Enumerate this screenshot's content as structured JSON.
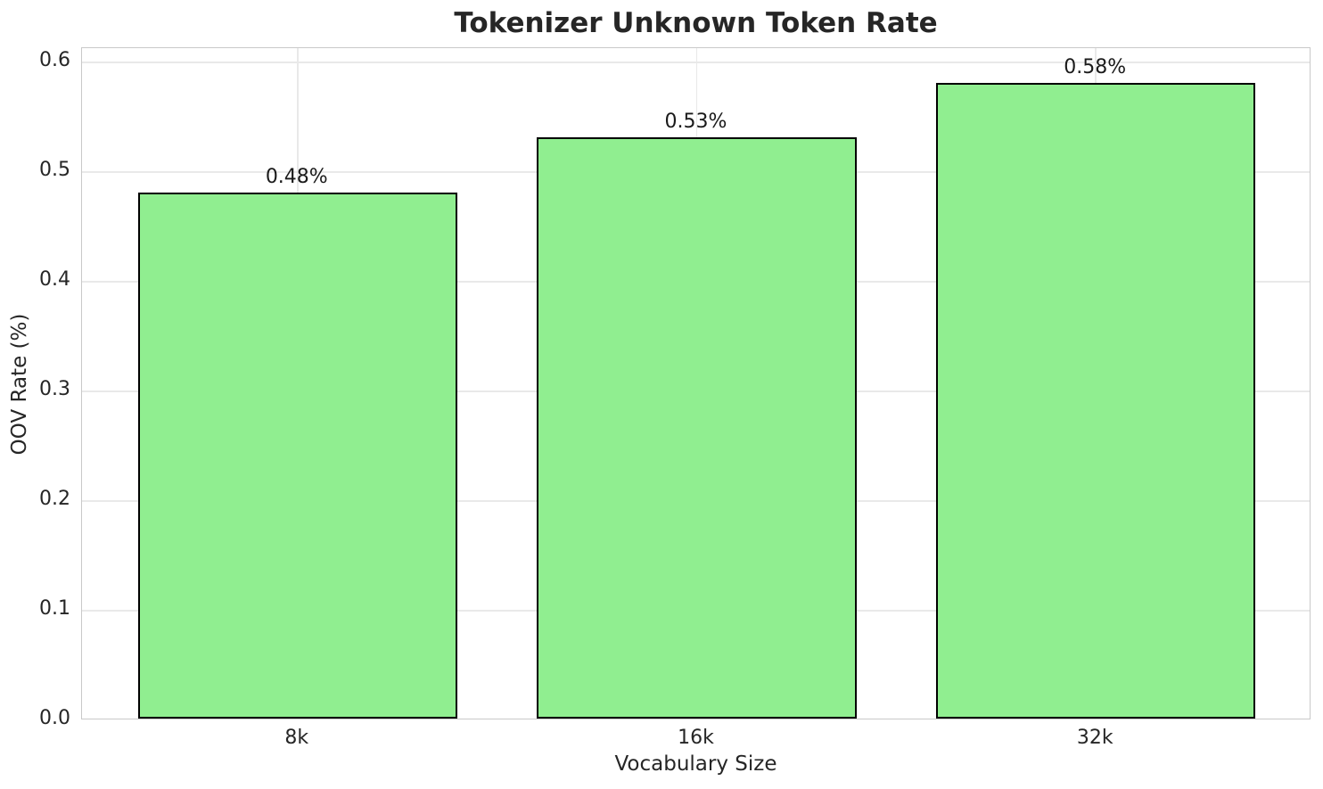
{
  "chart_data": {
    "type": "bar",
    "title": "Tokenizer Unknown Token Rate",
    "xlabel": "Vocabulary Size",
    "ylabel": "OOV Rate (%)",
    "categories": [
      "8k",
      "16k",
      "32k"
    ],
    "values": [
      0.48,
      0.53,
      0.58
    ],
    "bar_labels": [
      "0.48%",
      "0.53%",
      "0.58%"
    ],
    "yticks": [
      "0.0",
      "0.1",
      "0.2",
      "0.3",
      "0.4",
      "0.5",
      "0.6"
    ],
    "ytick_values": [
      0.0,
      0.1,
      0.2,
      0.3,
      0.4,
      0.5,
      0.6
    ],
    "ylim": [
      0,
      0.613
    ],
    "grid": true,
    "legend": "none",
    "colors": {
      "bar_fill": "#90EE90",
      "bar_edge": "#000000",
      "grid": "#e9e9e9",
      "spine": "#c9c9c9",
      "text": "#262626"
    }
  }
}
